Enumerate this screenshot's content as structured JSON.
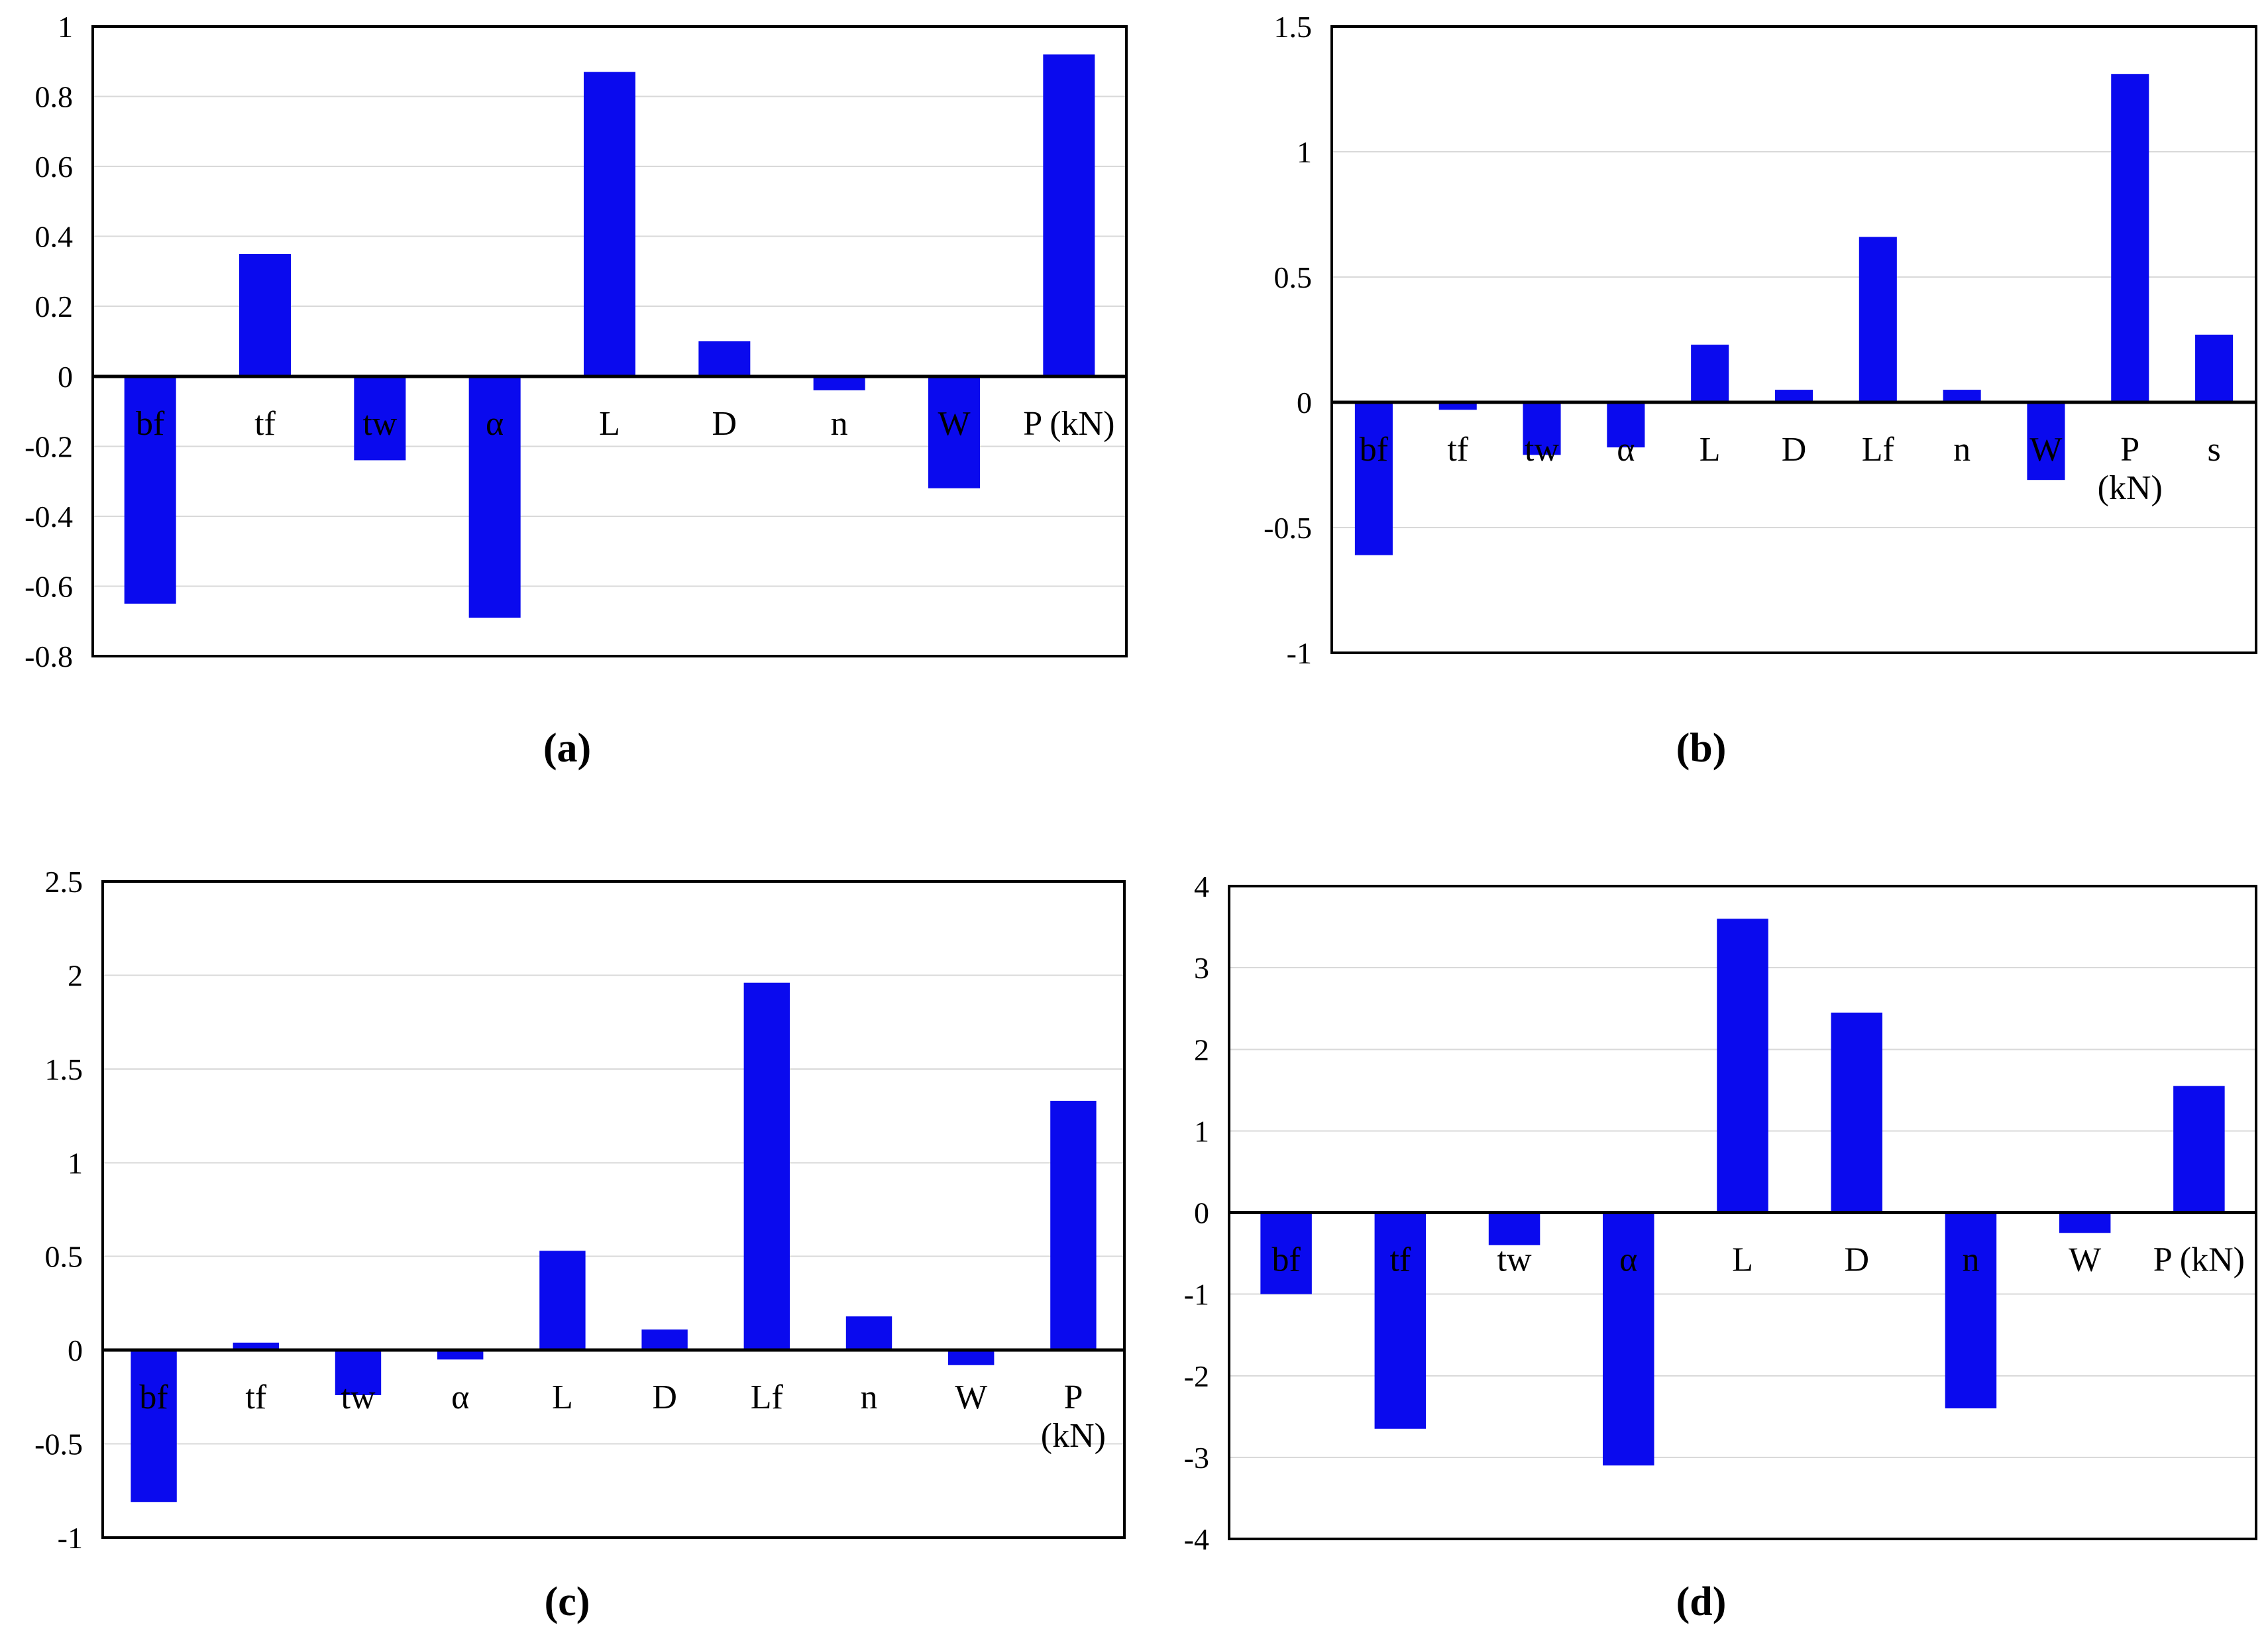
{
  "page": {
    "background": "#ffffff"
  },
  "style": {
    "bar_color": "#0a0aee",
    "grid_color": "#d9d9d9",
    "axis_color": "#000000",
    "text_color": "#000000"
  },
  "chart_data": [
    {
      "id": "a",
      "type": "bar",
      "caption": "(a)",
      "title": "",
      "xlabel": "",
      "ylabel": "",
      "categories": [
        "bf",
        "tf",
        "tw",
        "α",
        "L",
        "D",
        "n",
        "W",
        "P (kN)"
      ],
      "values": [
        -0.65,
        0.35,
        -0.24,
        -0.69,
        0.87,
        0.1,
        -0.04,
        -0.32,
        0.92
      ],
      "ylim": [
        -0.8,
        1
      ],
      "yticks": [
        1,
        0.8,
        0.6,
        0.4,
        0.2,
        0,
        -0.2,
        -0.4,
        -0.6,
        -0.8
      ],
      "ytick_labels": [
        "1",
        "0.8",
        "0.6",
        "0.4",
        "0.2",
        "0",
        "-0.2",
        "-0.4",
        "-0.6",
        "-0.8"
      ],
      "grid": true,
      "legend": false
    },
    {
      "id": "b",
      "type": "bar",
      "caption": "(b)",
      "title": "",
      "xlabel": "",
      "ylabel": "",
      "categories": [
        "bf",
        "tf",
        "tw",
        "α",
        "L",
        "D",
        "Lf",
        "n",
        "W",
        "P\n(kN)",
        "s"
      ],
      "values": [
        -0.61,
        -0.03,
        -0.21,
        -0.18,
        0.23,
        0.05,
        0.66,
        0.05,
        -0.31,
        1.31,
        0.27
      ],
      "ylim": [
        -1,
        1.5
      ],
      "yticks": [
        1.5,
        1,
        0.5,
        0,
        -0.5,
        -1
      ],
      "ytick_labels": [
        "1.5",
        "1",
        "0.5",
        "0",
        "-0.5",
        "-1"
      ],
      "grid": true,
      "legend": false
    },
    {
      "id": "c",
      "type": "bar",
      "caption": "(c)",
      "title": "",
      "xlabel": "",
      "ylabel": "",
      "categories": [
        "bf",
        "tf",
        "tw",
        "α",
        "L",
        "D",
        "Lf",
        "n",
        "W",
        "P\n(kN)"
      ],
      "values": [
        -0.81,
        0.04,
        -0.24,
        -0.05,
        0.53,
        0.11,
        1.96,
        0.18,
        -0.08,
        1.33
      ],
      "ylim": [
        -1,
        2.5
      ],
      "yticks": [
        2.5,
        2,
        1.5,
        1,
        0.5,
        0,
        -0.5,
        -1
      ],
      "ytick_labels": [
        "2.5",
        "2",
        "1.5",
        "1",
        "0.5",
        "0",
        "-0.5",
        "-1"
      ],
      "grid": true,
      "legend": false
    },
    {
      "id": "d",
      "type": "bar",
      "caption": "(d)",
      "title": "",
      "xlabel": "",
      "ylabel": "",
      "categories": [
        "bf",
        "tf",
        "tw",
        "α",
        "L",
        "D",
        "n",
        "W",
        "P (kN)"
      ],
      "values": [
        -1.0,
        -2.65,
        -0.4,
        -3.1,
        3.6,
        2.45,
        -2.4,
        -0.25,
        1.55
      ],
      "ylim": [
        -4,
        4
      ],
      "yticks": [
        4,
        3,
        2,
        1,
        0,
        -1,
        -2,
        -3,
        -4
      ],
      "ytick_labels": [
        "4",
        "3",
        "2",
        "1",
        "0",
        "-1",
        "-2",
        "-3",
        "-4"
      ],
      "grid": true,
      "legend": false
    }
  ]
}
